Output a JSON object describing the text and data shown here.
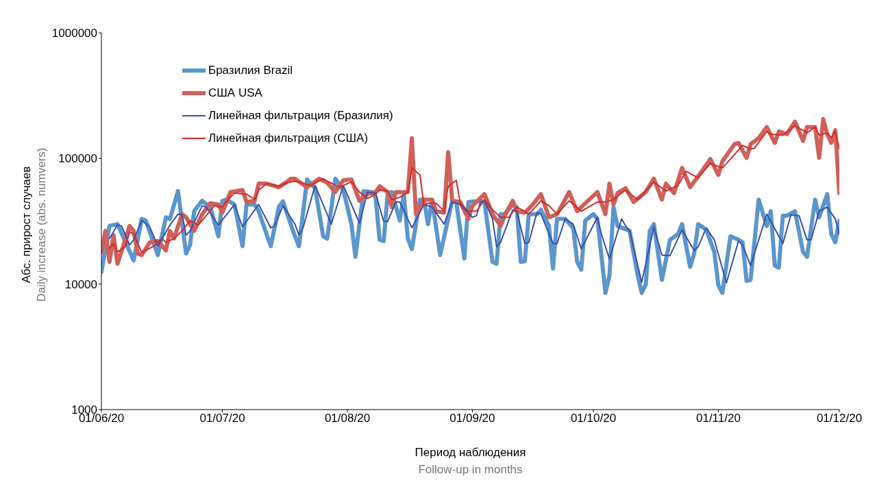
{
  "chart_data": {
    "type": "line",
    "xlabel": "Период наблюдения\nFollow-up in months",
    "ylabel": "Абс. прирост случаев\nDaily increase (abs. numvers)",
    "log": "y",
    "legend": "top left",
    "xlim": [
      "2020-06-01",
      "2020-12-01"
    ],
    "xticks": [
      {
        "value": "2020-06-01",
        "label": "01/06/20"
      },
      {
        "value": "2020-07-01",
        "label": "01/07/20"
      },
      {
        "value": "2020-08-01",
        "label": "01/08/20"
      },
      {
        "value": "2020-09-01",
        "label": "01/09/20"
      },
      {
        "value": "2020-10-01",
        "label": "01/10/20"
      },
      {
        "value": "2020-11-01",
        "label": "01/11/20"
      },
      {
        "value": "2020-12-01",
        "label": "01/12/20"
      }
    ],
    "ylim": [
      1000,
      1000000
    ],
    "yticks": [
      1000,
      10000,
      100000,
      1000000
    ],
    "series": [
      {
        "name": "Бразилия Brazil",
        "color": "#5b96cc",
        "x": [
          "2020-06-01",
          "2020-06-03",
          "2020-06-05",
          "2020-06-09",
          "2020-06-11",
          "2020-06-12",
          "2020-06-15",
          "2020-06-17",
          "2020-06-18",
          "2020-06-20",
          "2020-06-22",
          "2020-06-23",
          "2020-06-24",
          "2020-06-25",
          "2020-06-26",
          "2020-06-28",
          "2020-06-30",
          "2020-07-01",
          "2020-07-02",
          "2020-07-04",
          "2020-07-06",
          "2020-07-07",
          "2020-07-09",
          "2020-07-10",
          "2020-07-13",
          "2020-07-15",
          "2020-07-16",
          "2020-07-19",
          "2020-07-20",
          "2020-07-22",
          "2020-07-24",
          "2020-07-26",
          "2020-07-27",
          "2020-07-29",
          "2020-07-31",
          "2020-08-02",
          "2020-08-03",
          "2020-08-05",
          "2020-08-07",
          "2020-08-08",
          "2020-08-09",
          "2020-08-10",
          "2020-08-11",
          "2020-08-12",
          "2020-08-14",
          "2020-08-15",
          "2020-08-16",
          "2020-08-17",
          "2020-08-19",
          "2020-08-20",
          "2020-08-21",
          "2020-08-22",
          "2020-08-24",
          "2020-08-26",
          "2020-08-27",
          "2020-08-28",
          "2020-08-30",
          "2020-08-31",
          "2020-09-03",
          "2020-09-04",
          "2020-09-06",
          "2020-09-07",
          "2020-09-08",
          "2020-09-09",
          "2020-09-11",
          "2020-09-12",
          "2020-09-13",
          "2020-09-14",
          "2020-09-15",
          "2020-09-17",
          "2020-09-18",
          "2020-09-20",
          "2020-09-21",
          "2020-09-22",
          "2020-09-24",
          "2020-09-26",
          "2020-09-27",
          "2020-09-28",
          "2020-09-29",
          "2020-10-01",
          "2020-10-02",
          "2020-10-04",
          "2020-10-05",
          "2020-10-06",
          "2020-10-07",
          "2020-10-10",
          "2020-10-12",
          "2020-10-13",
          "2020-10-14",
          "2020-10-15",
          "2020-10-16",
          "2020-10-18",
          "2020-10-20",
          "2020-10-22",
          "2020-10-23",
          "2020-10-25",
          "2020-10-26",
          "2020-10-27",
          "2020-10-29",
          "2020-10-31",
          "2020-11-01",
          "2020-11-02",
          "2020-11-04",
          "2020-11-06",
          "2020-11-07",
          "2020-11-08",
          "2020-11-09",
          "2020-11-11",
          "2020-11-13",
          "2020-11-14",
          "2020-11-15",
          "2020-11-16",
          "2020-11-17",
          "2020-11-18",
          "2020-11-20",
          "2020-11-22",
          "2020-11-23",
          "2020-11-25",
          "2020-11-26",
          "2020-11-28",
          "2020-11-29",
          "2020-11-30",
          "2020-12-01"
        ],
        "values": [
          12500,
          29000,
          30000,
          15400,
          33000,
          32000,
          17000,
          34000,
          33000,
          55000,
          17500,
          20500,
          38000,
          42000,
          46000,
          41000,
          24000,
          46000,
          47000,
          43000,
          20000,
          43000,
          43000,
          38000,
          20000,
          41000,
          45500,
          24000,
          20000,
          68000,
          58000,
          24000,
          23000,
          69000,
          56000,
          30000,
          16500,
          55000,
          54000,
          49000,
          22500,
          22000,
          53000,
          54000,
          32000,
          52000,
          23000,
          19000,
          47000,
          47000,
          30000,
          47000,
          17000,
          33000,
          46000,
          45000,
          16000,
          45000,
          46000,
          45000,
          15000,
          14500,
          36000,
          36000,
          43000,
          41000,
          15000,
          15200,
          36000,
          36000,
          39000,
          29000,
          13300,
          33000,
          33000,
          28000,
          15000,
          13000,
          32000,
          36000,
          33000,
          8500,
          11700,
          41000,
          29000,
          26500,
          11700,
          8500,
          9900,
          26500,
          30000,
          10800,
          22500,
          25000,
          30000,
          13700,
          17500,
          30000,
          27000,
          18000,
          9800,
          8500,
          24000,
          22500,
          21500,
          10600,
          10800,
          47000,
          29000,
          38000,
          14000,
          13500,
          35000,
          35000,
          38000,
          18000,
          16500,
          47000,
          34000,
          52000,
          25000,
          21500,
          32000
        ]
      },
      {
        "name": "США USA",
        "color": "#d0605a",
        "x": [
          "2020-06-01",
          "2020-06-02",
          "2020-06-03",
          "2020-06-04",
          "2020-06-05",
          "2020-06-08",
          "2020-06-09",
          "2020-06-10",
          "2020-06-11",
          "2020-06-13",
          "2020-06-15",
          "2020-06-17",
          "2020-06-18",
          "2020-06-19",
          "2020-06-21",
          "2020-06-22",
          "2020-06-24",
          "2020-06-26",
          "2020-06-28",
          "2020-06-30",
          "2020-07-01",
          "2020-07-03",
          "2020-07-06",
          "2020-07-07",
          "2020-07-09",
          "2020-07-10",
          "2020-07-12",
          "2020-07-15",
          "2020-07-17",
          "2020-07-18",
          "2020-07-19",
          "2020-07-22",
          "2020-07-25",
          "2020-07-27",
          "2020-07-29",
          "2020-07-31",
          "2020-08-02",
          "2020-08-04",
          "2020-08-06",
          "2020-08-08",
          "2020-08-09",
          "2020-08-11",
          "2020-08-12",
          "2020-08-13",
          "2020-08-15",
          "2020-08-16",
          "2020-08-17",
          "2020-08-18",
          "2020-08-20",
          "2020-08-22",
          "2020-08-23",
          "2020-08-25",
          "2020-08-26",
          "2020-08-27",
          "2020-08-29",
          "2020-08-31",
          "2020-09-01",
          "2020-09-04",
          "2020-09-06",
          "2020-09-08",
          "2020-09-09",
          "2020-09-11",
          "2020-09-12",
          "2020-09-14",
          "2020-09-16",
          "2020-09-18",
          "2020-09-20",
          "2020-09-22",
          "2020-09-25",
          "2020-09-27",
          "2020-09-29",
          "2020-10-02",
          "2020-10-04",
          "2020-10-05",
          "2020-10-06",
          "2020-10-07",
          "2020-10-09",
          "2020-10-11",
          "2020-10-14",
          "2020-10-16",
          "2020-10-18",
          "2020-10-19",
          "2020-10-21",
          "2020-10-23",
          "2020-10-25",
          "2020-10-28",
          "2020-10-30",
          "2020-11-01",
          "2020-11-02",
          "2020-11-05",
          "2020-11-06",
          "2020-11-08",
          "2020-11-09",
          "2020-11-11",
          "2020-11-13",
          "2020-11-15",
          "2020-11-16",
          "2020-11-18",
          "2020-11-20",
          "2020-11-22",
          "2020-11-23",
          "2020-11-25",
          "2020-11-26",
          "2020-11-27",
          "2020-11-28",
          "2020-11-29",
          "2020-11-30",
          "2020-12-01"
        ],
        "values": [
          18000,
          26500,
          15000,
          24500,
          14500,
          29000,
          26500,
          17500,
          17000,
          21500,
          22000,
          18500,
          26500,
          23000,
          36000,
          34000,
          26500,
          36000,
          44000,
          43000,
          37000,
          54000,
          56000,
          45000,
          46000,
          63000,
          63000,
          59000,
          65000,
          69000,
          69000,
          59000,
          69000,
          64000,
          54000,
          67000,
          68000,
          46000,
          52000,
          54000,
          60000,
          54000,
          41000,
          54000,
          54000,
          54000,
          145000,
          36000,
          47000,
          47000,
          38000,
          37000,
          112000,
          46000,
          45000,
          33000,
          42000,
          52000,
          36000,
          29000,
          35000,
          46000,
          38000,
          37000,
          43000,
          52000,
          34000,
          36000,
          54000,
          38000,
          44000,
          54000,
          36000,
          63000,
          43000,
          53000,
          58000,
          45000,
          54000,
          69000,
          47000,
          63000,
          53000,
          84000,
          59000,
          80000,
          99000,
          74000,
          95000,
          130000,
          133000,
          101000,
          130000,
          145000,
          178000,
          133000,
          164000,
          156000,
          196000,
          138000,
          178000,
          178000,
          101000,
          206000,
          156000,
          133000,
          168000,
          53000
        ]
      },
      {
        "name": "Линейная фильтрация (Бразилия)",
        "color": "#3a4fa8",
        "x": [
          "2020-06-03",
          "2020-06-05",
          "2020-06-06",
          "2020-06-08",
          "2020-06-09",
          "2020-06-11",
          "2020-06-13",
          "2020-06-15",
          "2020-06-18",
          "2020-06-20",
          "2020-06-21",
          "2020-06-22",
          "2020-06-23",
          "2020-06-26",
          "2020-06-27",
          "2020-06-30",
          "2020-07-04",
          "2020-07-06",
          "2020-07-10",
          "2020-07-13",
          "2020-07-14",
          "2020-07-16",
          "2020-07-19",
          "2020-07-20",
          "2020-07-21",
          "2020-07-24",
          "2020-07-28",
          "2020-07-31",
          "2020-08-04",
          "2020-08-06",
          "2020-08-08",
          "2020-08-10",
          "2020-08-11",
          "2020-08-13",
          "2020-08-14",
          "2020-08-17",
          "2020-08-20",
          "2020-08-22",
          "2020-08-25",
          "2020-08-27",
          "2020-08-29",
          "2020-09-01",
          "2020-09-02",
          "2020-09-03",
          "2020-09-04",
          "2020-09-06",
          "2020-09-07",
          "2020-09-08",
          "2020-09-11",
          "2020-09-12",
          "2020-09-14",
          "2020-09-15",
          "2020-09-17",
          "2020-09-18",
          "2020-09-21",
          "2020-09-22",
          "2020-09-24",
          "2020-09-26",
          "2020-09-28",
          "2020-10-02",
          "2020-10-03",
          "2020-10-05",
          "2020-10-08",
          "2020-10-09",
          "2020-10-10",
          "2020-10-13",
          "2020-10-16",
          "2020-10-18",
          "2020-10-20",
          "2020-10-23",
          "2020-10-26",
          "2020-10-27",
          "2020-10-29",
          "2020-10-31",
          "2020-11-03",
          "2020-11-06",
          "2020-11-07",
          "2020-11-09",
          "2020-11-13",
          "2020-11-14",
          "2020-11-17",
          "2020-11-19",
          "2020-11-21",
          "2020-11-23",
          "2020-11-24",
          "2020-11-26",
          "2020-11-28",
          "2020-11-30",
          "2020-12-01"
        ],
        "values": [
          23000,
          29500,
          29000,
          20500,
          22500,
          32000,
          28500,
          20000,
          29500,
          36000,
          36000,
          24500,
          26500,
          42000,
          41000,
          29500,
          43000,
          28500,
          43000,
          28000,
          29000,
          42000,
          30000,
          24500,
          28000,
          61000,
          30000,
          61000,
          30500,
          54000,
          53000,
          31500,
          31500,
          45000,
          45000,
          28000,
          43000,
          41000,
          30000,
          45000,
          43000,
          34000,
          35000,
          45000,
          46000,
          33000,
          19800,
          21500,
          39000,
          38000,
          21000,
          21500,
          37000,
          36000,
          21000,
          21000,
          33000,
          30000,
          19000,
          34000,
          25000,
          15800,
          33000,
          29000,
          26500,
          10300,
          28500,
          17000,
          16800,
          27000,
          18500,
          19800,
          28000,
          22500,
          10200,
          22000,
          20500,
          14000,
          36000,
          31500,
          21000,
          35500,
          35000,
          22500,
          22500,
          38000,
          41000,
          33000,
          25000
        ]
      },
      {
        "name": "Линейная фильтрация (США)",
        "color": "#d42a2a",
        "x": [
          "2020-06-03",
          "2020-06-04",
          "2020-06-05",
          "2020-06-07",
          "2020-06-08",
          "2020-06-09",
          "2020-06-11",
          "2020-06-14",
          "2020-06-16",
          "2020-06-17",
          "2020-06-19",
          "2020-06-21",
          "2020-06-23",
          "2020-06-25",
          "2020-06-27",
          "2020-06-29",
          "2020-07-01",
          "2020-07-02",
          "2020-07-04",
          "2020-07-07",
          "2020-07-09",
          "2020-07-10",
          "2020-07-12",
          "2020-07-15",
          "2020-07-17",
          "2020-07-19",
          "2020-07-23",
          "2020-07-26",
          "2020-07-27",
          "2020-07-30",
          "2020-08-02",
          "2020-08-04",
          "2020-08-06",
          "2020-08-08",
          "2020-08-09",
          "2020-08-11",
          "2020-08-12",
          "2020-08-14",
          "2020-08-16",
          "2020-08-17",
          "2020-08-19",
          "2020-08-20",
          "2020-08-21",
          "2020-08-23",
          "2020-08-25",
          "2020-08-26",
          "2020-08-28",
          "2020-08-29",
          "2020-08-31",
          "2020-09-02",
          "2020-09-04",
          "2020-09-06",
          "2020-09-08",
          "2020-09-10",
          "2020-09-12",
          "2020-09-14",
          "2020-09-15",
          "2020-09-18",
          "2020-09-20",
          "2020-09-22",
          "2020-09-25",
          "2020-09-28",
          "2020-10-02",
          "2020-10-04",
          "2020-10-06",
          "2020-10-07",
          "2020-10-09",
          "2020-10-12",
          "2020-10-16",
          "2020-10-19",
          "2020-10-20",
          "2020-10-22",
          "2020-10-24",
          "2020-10-27",
          "2020-10-30",
          "2020-11-02",
          "2020-11-03",
          "2020-11-07",
          "2020-11-09",
          "2020-11-10",
          "2020-11-13",
          "2020-11-14",
          "2020-11-17",
          "2020-11-20",
          "2020-11-23",
          "2020-11-25",
          "2020-11-26",
          "2020-11-28",
          "2020-11-29",
          "2020-11-30",
          "2020-12-01"
        ],
        "values": [
          19300,
          21000,
          18000,
          20000,
          26000,
          25000,
          17800,
          20000,
          23000,
          21500,
          23000,
          26500,
          32000,
          29500,
          35000,
          42000,
          41000,
          45500,
          53000,
          52000,
          47000,
          56000,
          63000,
          60000,
          64000,
          66000,
          61000,
          69000,
          66000,
          59000,
          65000,
          54000,
          48000,
          52000,
          56000,
          55000,
          47000,
          49000,
          54000,
          84000,
          74000,
          42000,
          44000,
          44000,
          38000,
          60000,
          67000,
          44000,
          38000,
          38000,
          47000,
          39000,
          34000,
          34000,
          41000,
          38000,
          36000,
          46000,
          42000,
          36000,
          46000,
          38000,
          45000,
          45000,
          47000,
          50000,
          56000,
          47000,
          65000,
          55000,
          57000,
          61000,
          79000,
          70000,
          91000,
          84000,
          91000,
          127000,
          119000,
          121000,
          164000,
          156000,
          153000,
          182000,
          160000,
          178000,
          153000,
          160000,
          146000,
          164000,
          119000
        ]
      }
    ]
  }
}
